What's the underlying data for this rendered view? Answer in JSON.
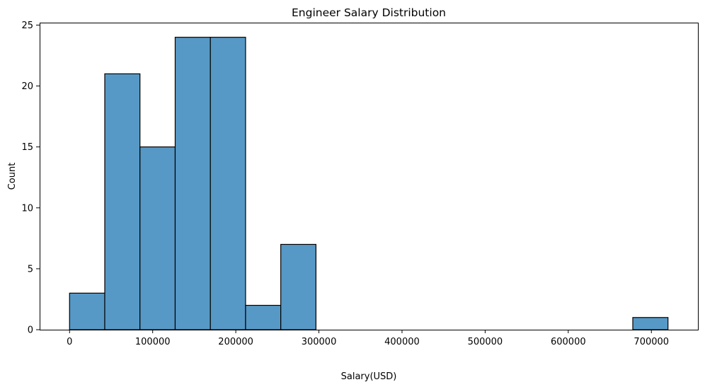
{
  "chart_data": {
    "type": "bar",
    "title": "Engineer Salary Distribution",
    "xlabel": "Salary(USD)",
    "ylabel": "Count",
    "xlim": [
      -36000,
      756000
    ],
    "ylim": [
      0,
      25.2
    ],
    "bin_width": 42353,
    "bins": [
      {
        "start": 0,
        "end": 42353,
        "count": 3
      },
      {
        "start": 42353,
        "end": 84706,
        "count": 21
      },
      {
        "start": 84706,
        "end": 127059,
        "count": 15
      },
      {
        "start": 127059,
        "end": 169412,
        "count": 24
      },
      {
        "start": 169412,
        "end": 211765,
        "count": 24
      },
      {
        "start": 211765,
        "end": 254118,
        "count": 2
      },
      {
        "start": 254118,
        "end": 296471,
        "count": 7
      },
      {
        "start": 296471,
        "end": 338824,
        "count": 0
      },
      {
        "start": 338824,
        "end": 381176,
        "count": 0
      },
      {
        "start": 381176,
        "end": 423529,
        "count": 0
      },
      {
        "start": 423529,
        "end": 465882,
        "count": 0
      },
      {
        "start": 465882,
        "end": 508235,
        "count": 0
      },
      {
        "start": 508235,
        "end": 550588,
        "count": 0
      },
      {
        "start": 550588,
        "end": 592941,
        "count": 0
      },
      {
        "start": 592941,
        "end": 635294,
        "count": 0
      },
      {
        "start": 635294,
        "end": 677647,
        "count": 0
      },
      {
        "start": 677647,
        "end": 720000,
        "count": 1
      }
    ],
    "x_ticks": [
      0,
      100000,
      200000,
      300000,
      400000,
      500000,
      600000,
      700000
    ],
    "x_tick_labels": [
      "0",
      "100000",
      "200000",
      "300000",
      "400000",
      "500000",
      "600000",
      "700000"
    ],
    "y_ticks": [
      0,
      5,
      10,
      15,
      20,
      25
    ],
    "y_tick_labels": [
      "0",
      "5",
      "10",
      "15",
      "20",
      "25"
    ],
    "grid": false,
    "bar_color": "#5799C6",
    "edge_color": "#000000"
  }
}
